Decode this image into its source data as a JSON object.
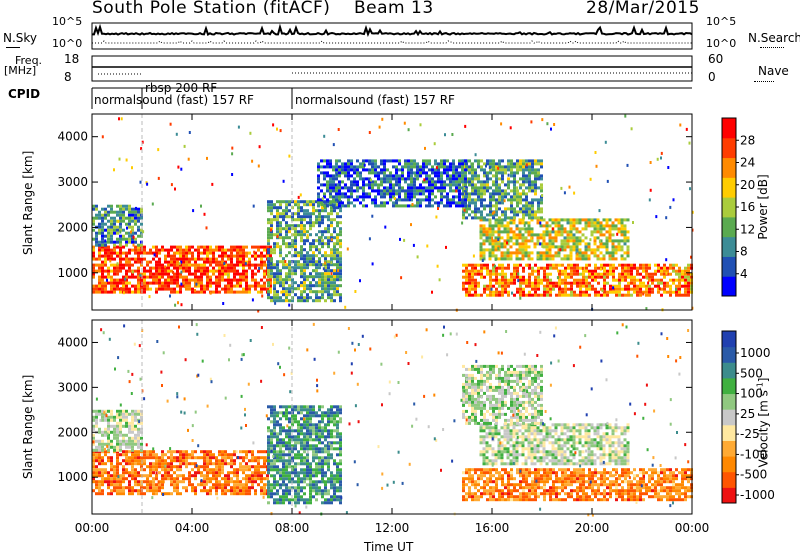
{
  "header": {
    "station": "South Pole Station (fitACF)",
    "beam": "Beam 13",
    "date": "28/Mar/2015"
  },
  "summary_panels": {
    "nsky_label": "N.Sky",
    "nsky_ticks": [
      "10^5",
      "10^0"
    ],
    "nsearch_label": "N.Search",
    "nsearch_ticks": [
      "10^5",
      "10^0"
    ],
    "freq_label": [
      "Freq.",
      "[MHz]"
    ],
    "freq_ticks": [
      "18",
      "8"
    ],
    "nave_label": "Nave",
    "nave_ticks": [
      "60",
      "0"
    ],
    "cpid_label": "CPID",
    "cpid_segments": [
      {
        "label": "normalsound (fast) 157 RF",
        "start_hour": 0.0
      },
      {
        "label": "rbsp 200 RF",
        "start_hour": 2.0
      },
      {
        "label": "normalsound (fast) 157 RF",
        "start_hour": 8.0
      }
    ]
  },
  "colors": {
    "power_scale": [
      "#0000ff",
      "#2050b4",
      "#3c8c96",
      "#5aaa50",
      "#aacc3c",
      "#ffcc00",
      "#ff8a00",
      "#ff3c00",
      "#ff0000"
    ],
    "velocity_scale": [
      "#ee1111",
      "#ff5500",
      "#ff8800",
      "#ffaa33",
      "#ffe8a0",
      "#c8c8c8",
      "#90c880",
      "#40b040",
      "#3c8c8c",
      "#2a5aa8",
      "#2040b0"
    ]
  },
  "chart_data": [
    {
      "type": "heatmap",
      "name": "power",
      "ylabel": "Slant Range [km]",
      "ylim": [
        180,
        4500
      ],
      "yticks": [
        "4000",
        "3000",
        "2000",
        "1000"
      ],
      "ytick_values": [
        4000,
        3000,
        2000,
        1000
      ],
      "xlim": [
        0,
        24
      ],
      "colorbar_label": "Power [dB]",
      "colorbar_ticks": [
        "28",
        "24",
        "20",
        "16",
        "12",
        "8",
        "4"
      ],
      "colorbar_range": [
        0,
        32
      ],
      "regions": [
        {
          "t0": 0.0,
          "t1": 7.2,
          "r0": 600,
          "r1": 1600,
          "level": 0.85
        },
        {
          "t0": 0.0,
          "t1": 2.0,
          "r0": 1600,
          "r1": 2500,
          "level": 0.3
        },
        {
          "t0": 7.0,
          "t1": 10.0,
          "r0": 400,
          "r1": 2600,
          "level": 0.35
        },
        {
          "t0": 14.8,
          "t1": 24.0,
          "r0": 500,
          "r1": 1200,
          "level": 0.75
        },
        {
          "t0": 15.5,
          "t1": 21.5,
          "r0": 1300,
          "r1": 2200,
          "level": 0.55
        },
        {
          "t0": 14.8,
          "t1": 18.0,
          "r0": 2200,
          "r1": 3500,
          "level": 0.35
        },
        {
          "t0": 9.0,
          "t1": 15.0,
          "r0": 2500,
          "r1": 3500,
          "level": 0.2
        }
      ]
    },
    {
      "type": "heatmap",
      "name": "velocity",
      "ylabel": "Slant Range [km]",
      "xlabel": "Time UT",
      "ylim": [
        180,
        4500
      ],
      "yticks": [
        "4000",
        "3000",
        "2000",
        "1000"
      ],
      "ytick_values": [
        4000,
        3000,
        2000,
        1000
      ],
      "xlim": [
        0,
        24
      ],
      "xticks": [
        "00:00",
        "04:00",
        "08:00",
        "12:00",
        "16:00",
        "20:00",
        "00:00"
      ],
      "xtick_values": [
        0,
        4,
        8,
        12,
        16,
        20,
        24
      ],
      "colorbar_label": "Velocity [m s^-1]",
      "colorbar_ticks": [
        "1000",
        "500",
        "100",
        "25",
        "-25",
        "-100",
        "-500",
        "-1000"
      ],
      "colorbar_range": [
        -1000,
        1000
      ],
      "regions": [
        {
          "t0": 0.0,
          "t1": 7.0,
          "r0": 600,
          "r1": 1600,
          "level": -0.6
        },
        {
          "t0": 0.0,
          "t1": 2.0,
          "r0": 1600,
          "r1": 2500,
          "level": 0.05
        },
        {
          "t0": 7.0,
          "t1": 10.0,
          "r0": 400,
          "r1": 2600,
          "level": 0.5
        },
        {
          "t0": 14.8,
          "t1": 24.0,
          "r0": 500,
          "r1": 1200,
          "level": -0.55
        },
        {
          "t0": 15.5,
          "t1": 21.5,
          "r0": 1300,
          "r1": 2200,
          "level": 0.05
        },
        {
          "t0": 14.8,
          "t1": 18.0,
          "r0": 2200,
          "r1": 3500,
          "level": 0.1
        }
      ]
    }
  ]
}
